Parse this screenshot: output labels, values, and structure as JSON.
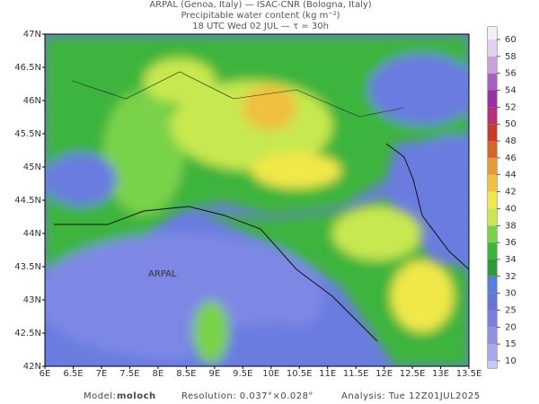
{
  "header": {
    "line1": "ARPAL (Genoa, Italy)  —  ISAC-CNR (Bologna, Italy)",
    "line2": "Precipitable water content (kg m⁻²)",
    "line3": "18 UTC Wed 02 JUL  —  τ = 30h"
  },
  "map": {
    "xticks": [
      "6E",
      "6.5E",
      "7E",
      "7.5E",
      "8E",
      "8.5E",
      "9E",
      "9.5E",
      "10E",
      "10.5E",
      "11E",
      "11.5E",
      "12E",
      "12.5E",
      "13E",
      "13.5E"
    ],
    "yticks": [
      "47N",
      "46.5N",
      "46N",
      "45.5N",
      "45N",
      "44.5N",
      "44N",
      "43.5N",
      "43N",
      "42.5N",
      "42N"
    ],
    "watermark": "ARPAL"
  },
  "colorbar": {
    "levels": [
      10,
      15,
      20,
      25,
      30,
      32,
      34,
      36,
      38,
      40,
      42,
      44,
      46,
      48,
      50,
      52,
      54,
      56,
      58,
      60
    ],
    "colors": [
      "#a8a8ec",
      "#9090e4",
      "#7a80dc",
      "#6676d6",
      "#5a7ee0",
      "#2e9a3a",
      "#3cb43c",
      "#7ad24a",
      "#c8e850",
      "#f0e84a",
      "#f0c040",
      "#e89a34",
      "#d8642a",
      "#c83a2a",
      "#b8307a",
      "#9a30a8",
      "#a860c0",
      "#c8a0dc",
      "#e4d0ee"
    ]
  },
  "footer": {
    "model_label": "Model:",
    "model": "moloch",
    "resolution": "Resolution: 0.037°×0.028°",
    "analysis": "Analysis: Tue 12Z01JUL2025"
  }
}
